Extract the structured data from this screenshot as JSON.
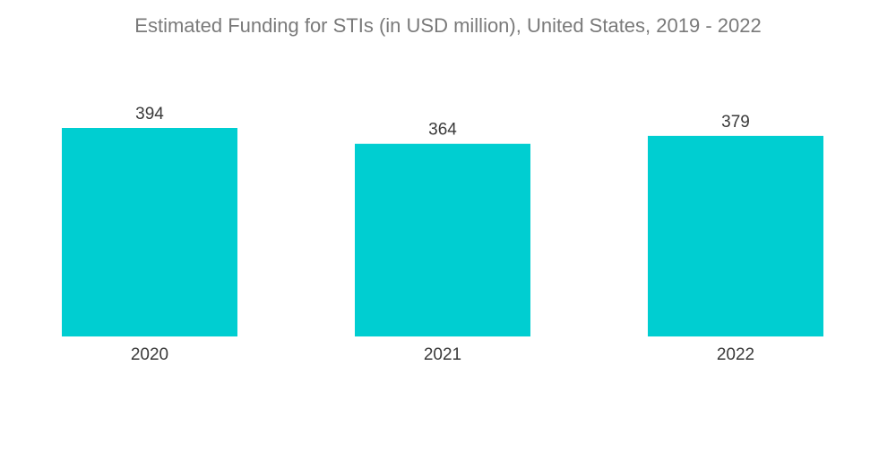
{
  "chart_data": {
    "type": "bar",
    "title": "Estimated Funding for STIs (in USD million), United States, 2019 - 2022",
    "categories": [
      "2020",
      "2021",
      "2022"
    ],
    "values": [
      394,
      364,
      379
    ],
    "xlabel": "",
    "ylabel": "",
    "ylim": [
      0,
      394
    ],
    "grid": false,
    "data_labels": true,
    "bar_color": "#00ced1"
  }
}
